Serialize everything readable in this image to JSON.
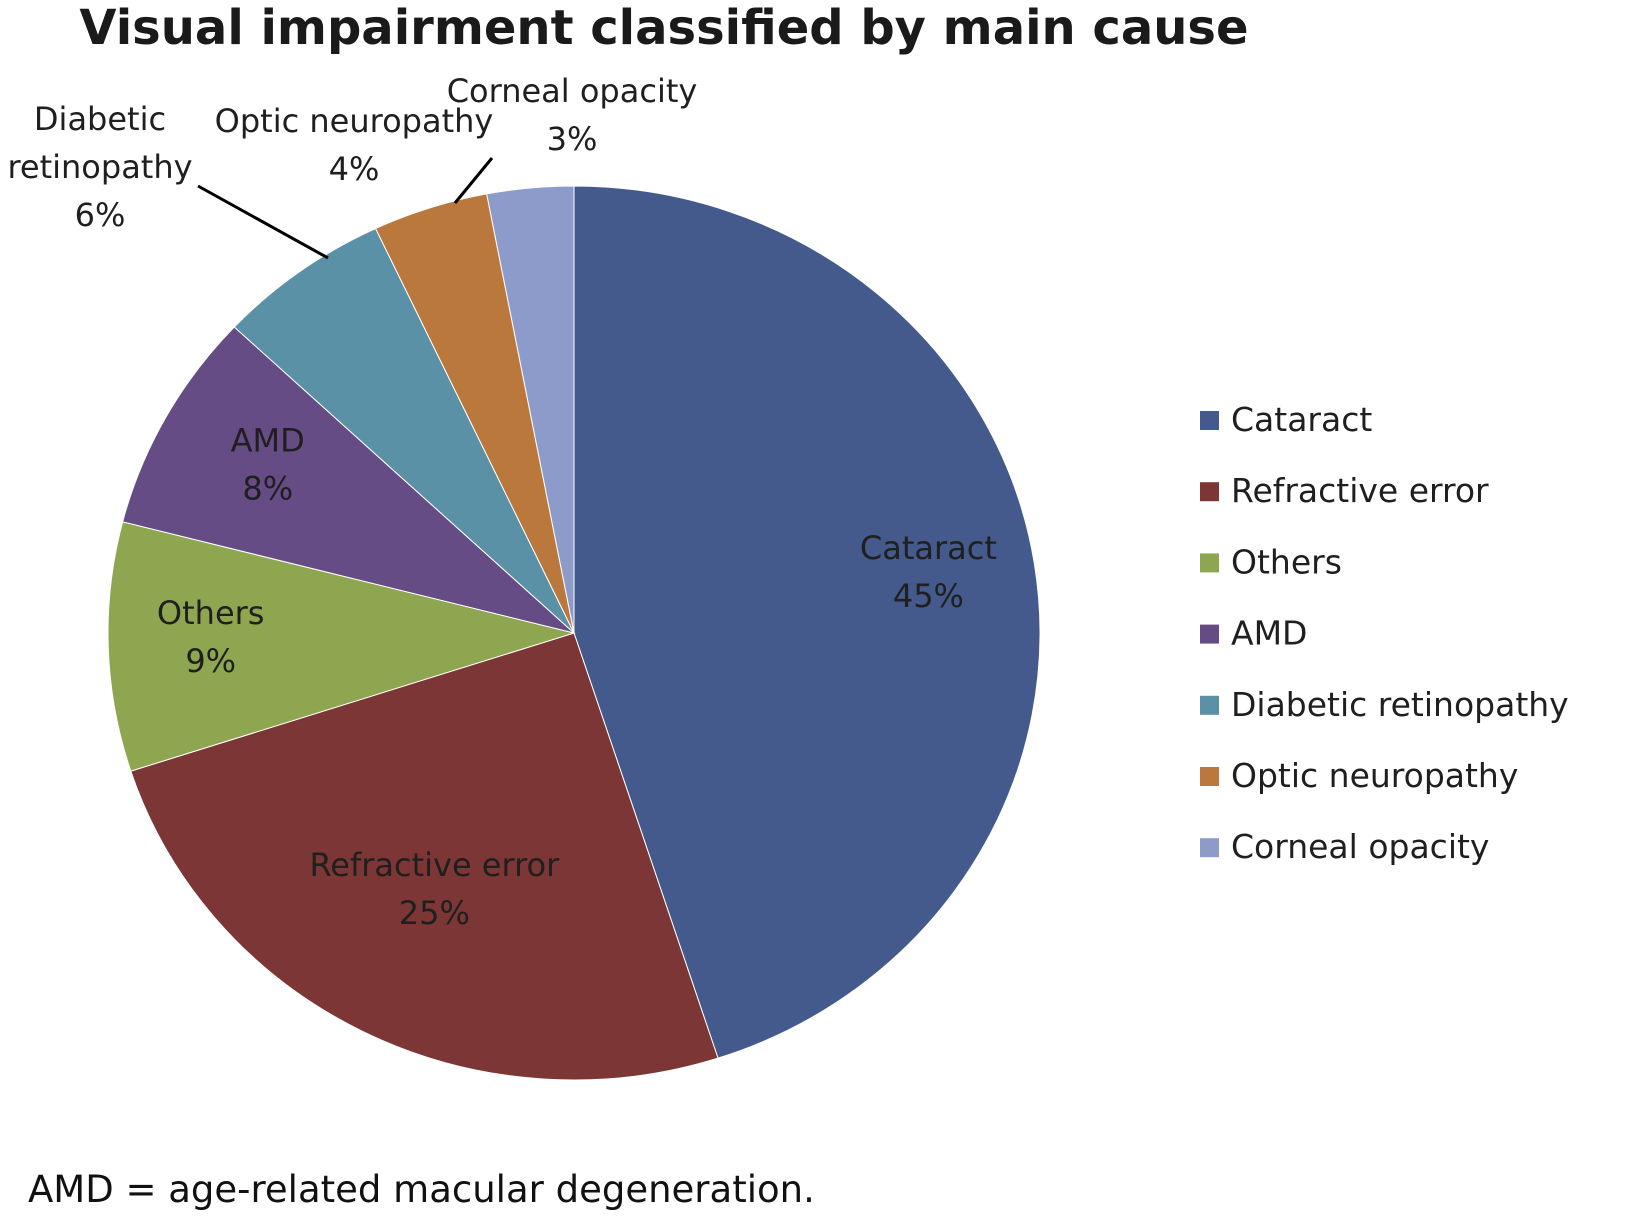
{
  "chart_data": {
    "type": "pie",
    "title": "Visual impairment classified by main cause",
    "slices": [
      {
        "label": "Cataract",
        "value": 45,
        "display": "45%",
        "color": "#445a8c",
        "label_lines": [
          "Cataract",
          "45%"
        ]
      },
      {
        "label": "Refractive error",
        "value": 25,
        "display": "25%",
        "color": "#7c3636",
        "label_lines": [
          "Refractive error",
          "25%"
        ]
      },
      {
        "label": "Others",
        "value": 9,
        "display": "9%",
        "color": "#8fa650",
        "label_lines": [
          "Others",
          "9%"
        ]
      },
      {
        "label": "AMD",
        "value": 8,
        "display": "8%",
        "color": "#664c85",
        "label_lines": [
          "AMD",
          "8%"
        ]
      },
      {
        "label": "Diabetic retinopathy",
        "value": 6,
        "display": "6%",
        "color": "#5b91a6",
        "label_lines": [
          "Diabetic",
          "retinopathy",
          "6%"
        ]
      },
      {
        "label": "Optic neuropathy",
        "value": 4,
        "display": "4%",
        "color": "#bb783c",
        "label_lines": [
          "Optic neuropathy",
          "4%"
        ]
      },
      {
        "label": "Corneal opacity",
        "value": 3,
        "display": "3%",
        "color": "#8d9bcb",
        "label_lines": [
          "Corneal  opacity",
          "3%"
        ]
      }
    ],
    "legend": {
      "position": "right",
      "items": [
        "Cataract",
        "Refractive error",
        "Others",
        "AMD",
        "Diabetic retinopathy",
        "Optic neuropathy",
        "Corneal opacity"
      ]
    }
  },
  "footnote": "AMD = age-related macular degeneration."
}
